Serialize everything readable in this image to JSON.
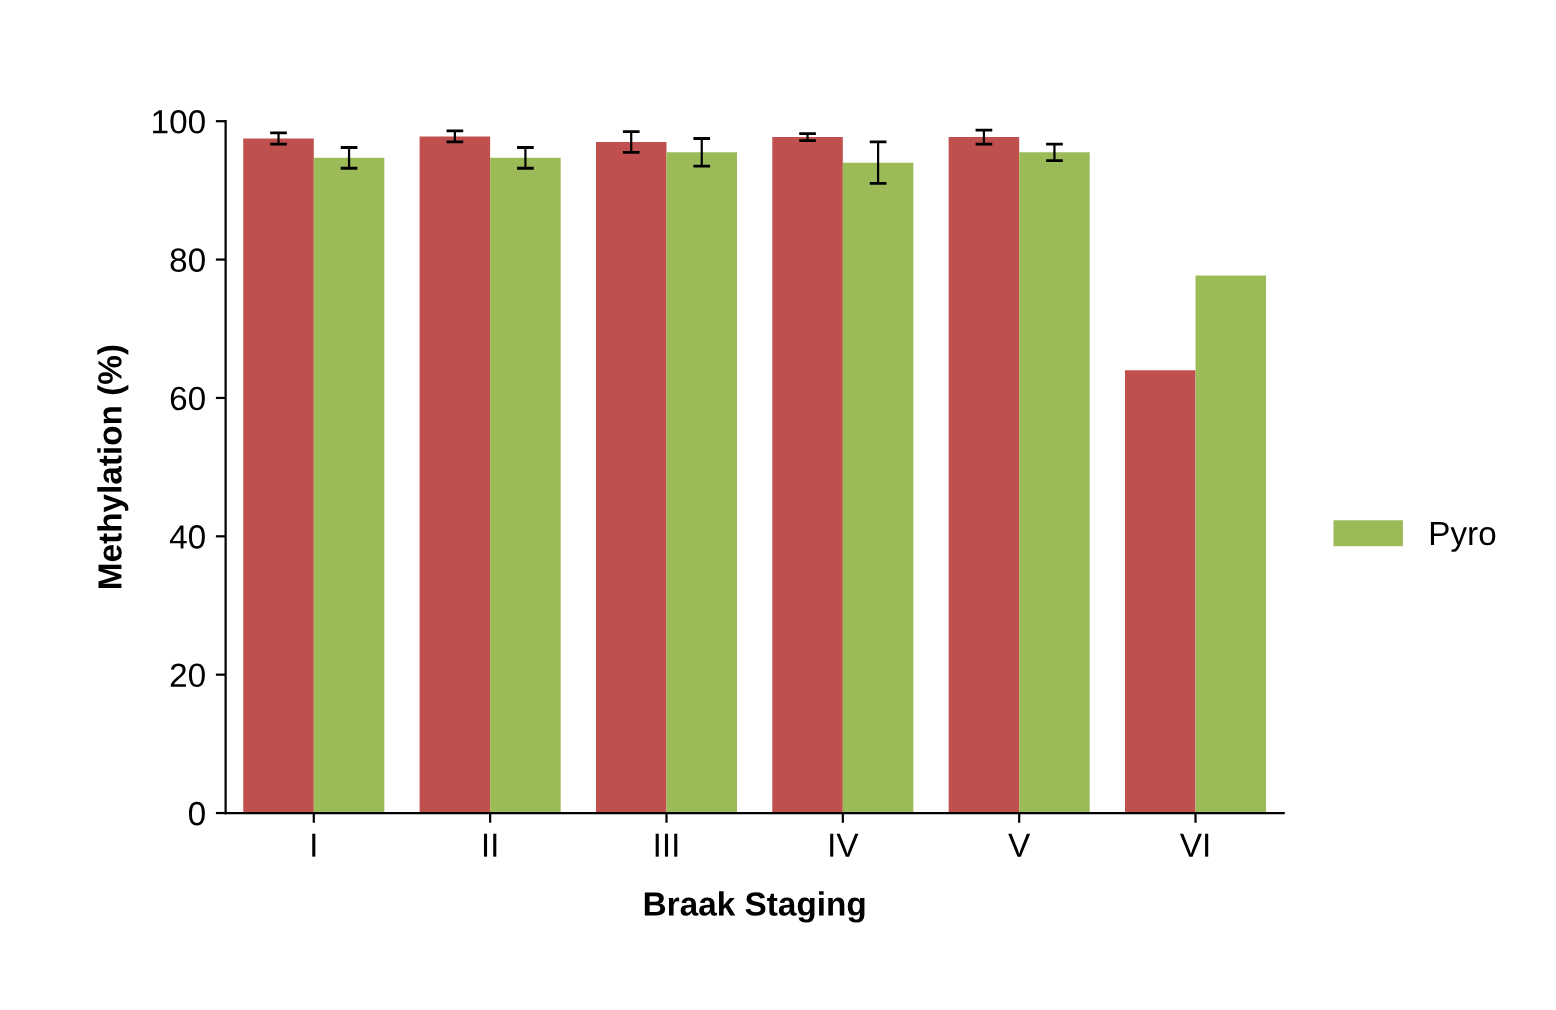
{
  "chart_data": {
    "type": "bar",
    "xlabel": "Braak Staging",
    "ylabel": "Methylation (%)",
    "categories": [
      "I",
      "II",
      "III",
      "IV",
      "V",
      "VI"
    ],
    "series": [
      {
        "color": "#c0504d",
        "values": [
          97.5,
          97.8,
          97.0,
          97.7,
          97.7,
          64.0
        ],
        "errors": [
          0.8,
          0.8,
          1.5,
          0.5,
          1.0,
          null
        ]
      },
      {
        "name": "Pyro",
        "color": "#9bbb59",
        "values": [
          94.7,
          94.7,
          95.5,
          94.0,
          95.5,
          77.7
        ],
        "errors": [
          1.5,
          1.5,
          2.0,
          3.0,
          1.2,
          null
        ]
      }
    ],
    "ylim": [
      0,
      100
    ],
    "yticks": [
      0,
      20,
      40,
      60,
      80,
      100
    ],
    "grid": false,
    "legend": "right"
  }
}
